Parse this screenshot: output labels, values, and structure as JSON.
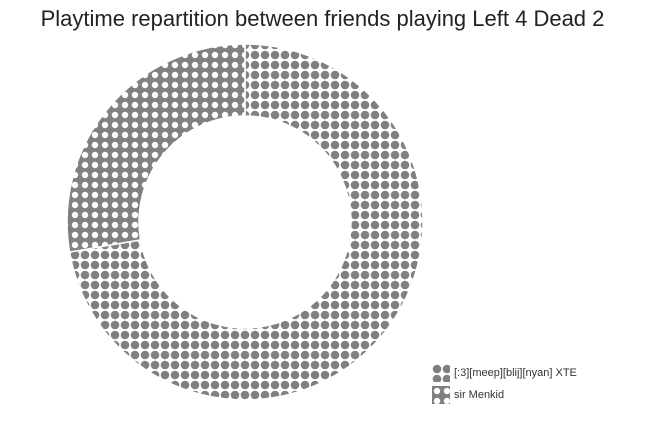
{
  "chart_data": {
    "type": "pie",
    "donut": true,
    "title": "Playtime repartition between friends playing Left 4 Dead 2",
    "slices": [
      {
        "label": "[:3][meep][blij][nyan] XTE",
        "value": 72.3,
        "pattern": "dots-filled",
        "color": "#808080"
      },
      {
        "label": "sir Menkid",
        "value": 27.7,
        "pattern": "dots-hollow",
        "color": "#808080"
      }
    ],
    "legend_position": "bottom-right"
  }
}
